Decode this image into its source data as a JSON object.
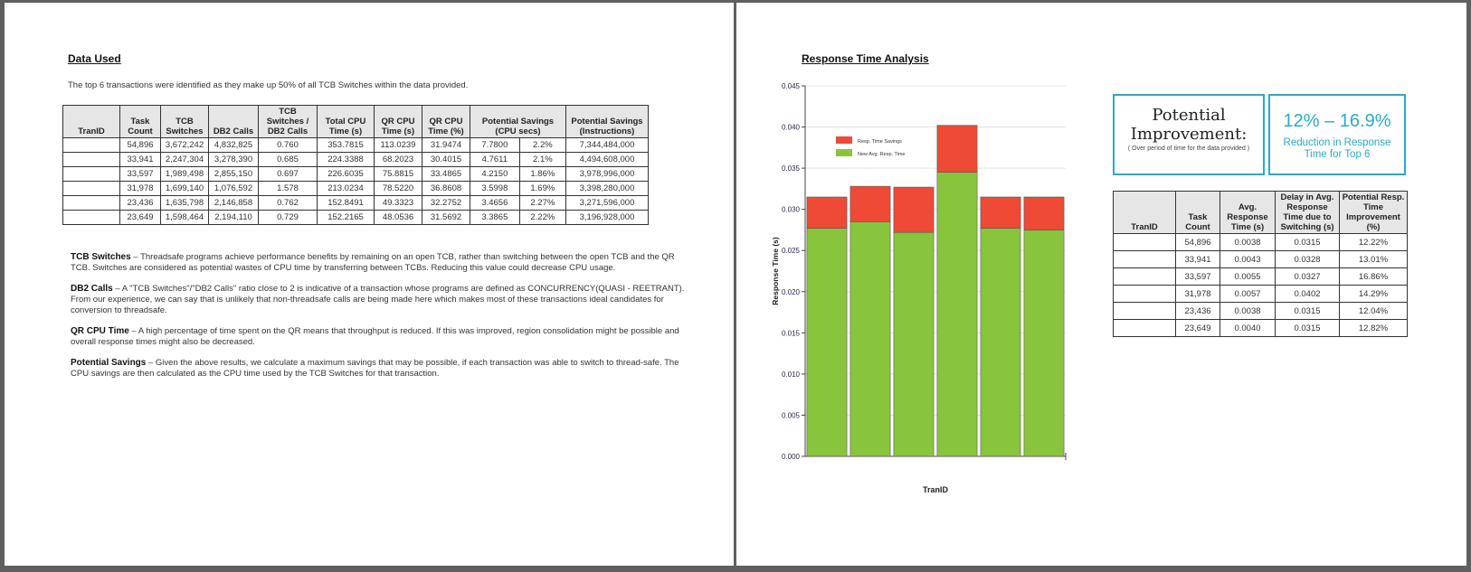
{
  "left_page": {
    "heading": "Data Used",
    "intro": "The top 6 transactions were identified as they make up 50% of all TCB Switches within the data provided.",
    "table": {
      "headers": [
        "TranID",
        "Task Count",
        "TCB Switches",
        "DB2 Calls",
        "TCB Switches / DB2 Calls",
        "Total CPU Time (s)",
        "QR CPU Time (s)",
        "QR CPU Time (%)",
        "Potential Savings (CPU secs)",
        "Potential Savings (Instructions)"
      ],
      "rows": [
        {
          "task_count": "54,896",
          "tcb_switches": "3,672,242",
          "db2_calls": "4,832,825",
          "ratio": "0.760",
          "total_cpu": "353.7815",
          "qr_cpu": "113.0239",
          "qr_pct": "31.9474",
          "savings_secs": "7.7800",
          "savings_pct": "2.2%",
          "savings_instr": "7,344,484,000"
        },
        {
          "task_count": "33,941",
          "tcb_switches": "2,247,304",
          "db2_calls": "3,278,390",
          "ratio": "0.685",
          "total_cpu": "224.3388",
          "qr_cpu": "68.2023",
          "qr_pct": "30.4015",
          "savings_secs": "4.7611",
          "savings_pct": "2.1%",
          "savings_instr": "4,494,608,000"
        },
        {
          "task_count": "33,597",
          "tcb_switches": "1,989,498",
          "db2_calls": "2,855,150",
          "ratio": "0.697",
          "total_cpu": "226.6035",
          "qr_cpu": "75.8815",
          "qr_pct": "33.4865",
          "savings_secs": "4.2150",
          "savings_pct": "1.86%",
          "savings_instr": "3,978,996,000"
        },
        {
          "task_count": "31,978",
          "tcb_switches": "1,699,140",
          "db2_calls": "1,076,592",
          "ratio": "1.578",
          "total_cpu": "213.0234",
          "qr_cpu": "78.5220",
          "qr_pct": "36.8608",
          "savings_secs": "3.5998",
          "savings_pct": "1.69%",
          "savings_instr": "3,398,280,000"
        },
        {
          "task_count": "23,436",
          "tcb_switches": "1,635,798",
          "db2_calls": "2,146,858",
          "ratio": "0.762",
          "total_cpu": "152.8491",
          "qr_cpu": "49.3323",
          "qr_pct": "32.2752",
          "savings_secs": "3.4656",
          "savings_pct": "2.27%",
          "savings_instr": "3,271,596,000"
        },
        {
          "task_count": "23,649",
          "tcb_switches": "1,598,464",
          "db2_calls": "2,194,110",
          "ratio": "0.729",
          "total_cpu": "152.2165",
          "qr_cpu": "48.0536",
          "qr_pct": "31.5692",
          "savings_secs": "3.3865",
          "savings_pct": "2.22%",
          "savings_instr": "3,196,928,000"
        }
      ]
    },
    "definitions": [
      {
        "term": "TCB Switches",
        "text": " – Threadsafe programs achieve performance benefits by remaining on an open TCB, rather than switching between the open TCB and the QR TCB. Switches are considered as potential wastes of CPU time by transferring between TCBs. Reducing this value could decrease CPU usage."
      },
      {
        "term": "DB2 Calls",
        "text": " – A \"TCB Switches\"/\"DB2 Calls\" ratio close to 2 is indicative of a transaction whose programs are defined as CONCURRENCY(QUASI - REETRANT). From our experience, we can say that is unlikely that non-threadsafe calls are being made here which makes most of these transactions ideal candidates for conversion to threadsafe."
      },
      {
        "term": "QR CPU Time",
        "text": " – A high percentage of time spent on the QR means that throughput is reduced. If this was improved, region consolidation might be possible and overall response times might also be decreased."
      },
      {
        "term": "Potential Savings",
        "text": " – Given the above results, we calculate a maximum savings that may be possible, if each transaction was able to switch to thread-safe. The CPU savings are then calculated as the CPU time used by the TCB Switches for that transaction."
      }
    ]
  },
  "right_page": {
    "heading": "Response Time Analysis",
    "improvement": {
      "title_line1": "Potential",
      "title_line2": "Improvement:",
      "subtitle": "( Over period of time for the data provided )"
    },
    "range": {
      "value": "12% – 16.9%",
      "caption_line1": "Reduction in Response",
      "caption_line2": "Time for Top 6"
    },
    "table": {
      "headers": [
        "TranID",
        "Task Count",
        "Avg. Response Time (s)",
        "Delay in Avg. Response Time due to Switching (s)",
        "Potential Resp. Time Improvement (%)"
      ],
      "rows": [
        {
          "task_count": "54,896",
          "avg_resp": "0.0038",
          "delay": "0.0315",
          "improvement": "12.22%"
        },
        {
          "task_count": "33,941",
          "avg_resp": "0.0043",
          "delay": "0.0328",
          "improvement": "13.01%"
        },
        {
          "task_count": "33,597",
          "avg_resp": "0.0055",
          "delay": "0.0327",
          "improvement": "16.86%"
        },
        {
          "task_count": "31,978",
          "avg_resp": "0.0057",
          "delay": "0.0402",
          "improvement": "14.29%"
        },
        {
          "task_count": "23,436",
          "avg_resp": "0.0038",
          "delay": "0.0315",
          "improvement": "12.04%"
        },
        {
          "task_count": "23,649",
          "avg_resp": "0.0040",
          "delay": "0.0315",
          "improvement": "12.82%"
        }
      ]
    }
  },
  "chart_data": {
    "type": "bar",
    "stacked": true,
    "xlabel": "TranID",
    "ylabel": "Response Time (s)",
    "ylim": [
      0,
      0.045
    ],
    "yticks": [
      "0.000",
      "0.005",
      "0.010",
      "0.015",
      "0.020",
      "0.025",
      "0.030",
      "0.035",
      "0.040",
      "0.045"
    ],
    "grid": true,
    "legend_position": "top-left",
    "categories": [
      "",
      "",
      "",
      "",
      "",
      ""
    ],
    "series": [
      {
        "name": "Resp. Time Savings",
        "color": "#ee4a36",
        "values": [
          0.0038,
          0.0043,
          0.0055,
          0.0057,
          0.0038,
          0.004
        ]
      },
      {
        "name": "New Avg. Resp. Time",
        "color": "#89c43d",
        "values": [
          0.0277,
          0.0285,
          0.0272,
          0.0345,
          0.0277,
          0.0275
        ]
      }
    ]
  }
}
